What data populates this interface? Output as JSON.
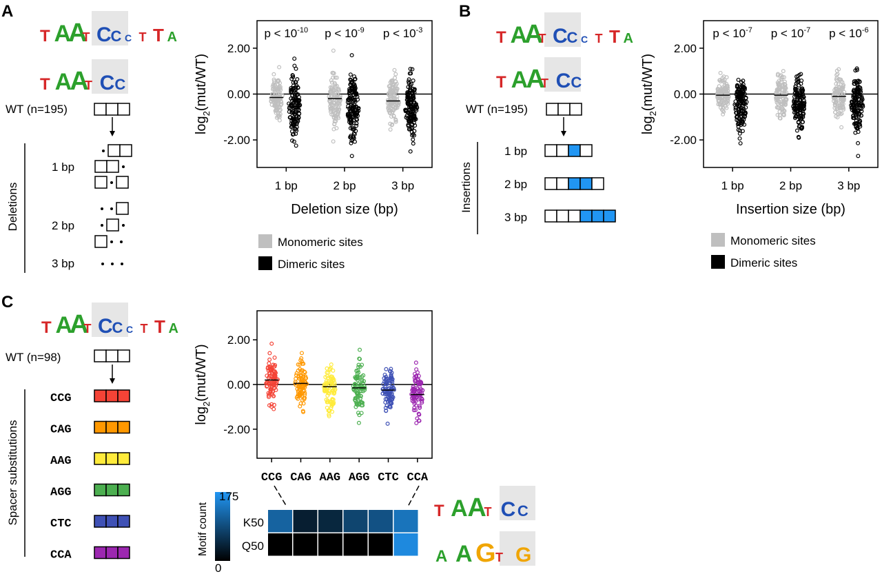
{
  "panels": {
    "A": "A",
    "B": "B",
    "C": "C"
  },
  "colors": {
    "monomeric": "#bfbfbf",
    "dimeric": "#000000",
    "blue": "#2196f3",
    "sub": {
      "CCG": "#f44336",
      "CAG": "#ff9800",
      "AAG": "#ffeb3b",
      "AGG": "#4caf50",
      "CTC": "#3f51b5",
      "CCA": "#9c27b0"
    }
  },
  "icons": [
    "motif-logo-icon",
    "arrow-down-icon",
    "legend-swatch-icon"
  ],
  "motifs": {
    "full": [
      "T",
      "A",
      "A",
      "T",
      "C",
      "C",
      "c",
      "T",
      "T",
      "A"
    ],
    "half": [
      "T",
      "A",
      "A",
      "T",
      "C",
      "C"
    ],
    "q50": [
      "A",
      "A",
      "G",
      "T",
      "G"
    ]
  },
  "panelA": {
    "wt_label": "WT (n=195)",
    "group_label": "Deletions",
    "rows": [
      "1 bp",
      "2 bp",
      "3 bp"
    ],
    "legend": [
      "Monomeric sites",
      "Dimeric sites"
    ]
  },
  "panelB": {
    "wt_label": "WT (n=195)",
    "group_label": "Insertions",
    "rows": [
      "1 bp",
      "2 bp",
      "3 bp"
    ],
    "legend": [
      "Monomeric sites",
      "Dimeric sites"
    ]
  },
  "panelC": {
    "wt_label": "WT (n=98)",
    "group_label": "Spacer substitutions",
    "subs": [
      "CCG",
      "CAG",
      "AAG",
      "AGG",
      "CTC",
      "CCA"
    ]
  },
  "chart_data": [
    {
      "type": "scatter",
      "panel": "A",
      "categories": [
        "1 bp",
        "2 bp",
        "3 bp"
      ],
      "xlabel": "Deletion size (bp)",
      "ylabel": "log2(mut/WT)",
      "ylim": [
        -3.2,
        3.2
      ],
      "yticks": [
        "2.00",
        "0.00",
        "-2.00"
      ],
      "pvalues": [
        {
          "base": "p < 10",
          "exp": "-10"
        },
        {
          "base": "p < 10",
          "exp": "-9"
        },
        {
          "base": "p < 10",
          "exp": "-3"
        }
      ],
      "series": [
        {
          "name": "Monomeric sites",
          "means": [
            -0.15,
            -0.2,
            -0.3
          ],
          "spread": [
            0.5,
            0.55,
            0.55
          ]
        },
        {
          "name": "Dimeric sites",
          "means": [
            -0.55,
            -0.6,
            -0.65
          ],
          "spread": [
            0.7,
            0.7,
            0.65
          ]
        }
      ],
      "legend": "below"
    },
    {
      "type": "scatter",
      "panel": "B",
      "categories": [
        "1 bp",
        "2 bp",
        "3 bp"
      ],
      "xlabel": "Insertion size (bp)",
      "ylabel": "log2(mut/WT)",
      "ylim": [
        -3.2,
        3.2
      ],
      "yticks": [
        "2.00",
        "0.00",
        "-2.00"
      ],
      "pvalues": [
        {
          "base": "p < 10",
          "exp": "-7"
        },
        {
          "base": "p < 10",
          "exp": "-7"
        },
        {
          "base": "p < 10",
          "exp": "-6"
        }
      ],
      "series": [
        {
          "name": "Monomeric sites",
          "means": [
            -0.05,
            -0.05,
            -0.1
          ],
          "spread": [
            0.4,
            0.45,
            0.45
          ]
        },
        {
          "name": "Dimeric sites",
          "means": [
            -0.45,
            -0.45,
            -0.45
          ],
          "spread": [
            0.6,
            0.6,
            0.6
          ]
        }
      ],
      "legend": "below"
    },
    {
      "type": "scatter",
      "panel": "C",
      "categories": [
        "CCG",
        "CAG",
        "AAG",
        "AGG",
        "CTC",
        "CCA"
      ],
      "xlabel": "",
      "ylabel": "log2(mut/WT)",
      "ylim": [
        -3.3,
        3.3
      ],
      "yticks": [
        "2.00",
        "0.00",
        "-2.00"
      ],
      "means": [
        0.2,
        0.05,
        -0.1,
        -0.15,
        -0.25,
        -0.45
      ]
    },
    {
      "type": "heatmap",
      "panel": "C",
      "rows": [
        "K50",
        "Q50"
      ],
      "columns": [
        "CCG",
        "CAG",
        "AAG",
        "AGG",
        "CTC",
        "CCA"
      ],
      "values": [
        [
          115,
          35,
          45,
          80,
          95,
          135
        ],
        [
          0,
          0,
          0,
          0,
          0,
          160
        ]
      ],
      "colorbar_label": "Motif count",
      "range": [
        0,
        175
      ],
      "colorbar_ticks": [
        "175",
        "0"
      ]
    }
  ]
}
